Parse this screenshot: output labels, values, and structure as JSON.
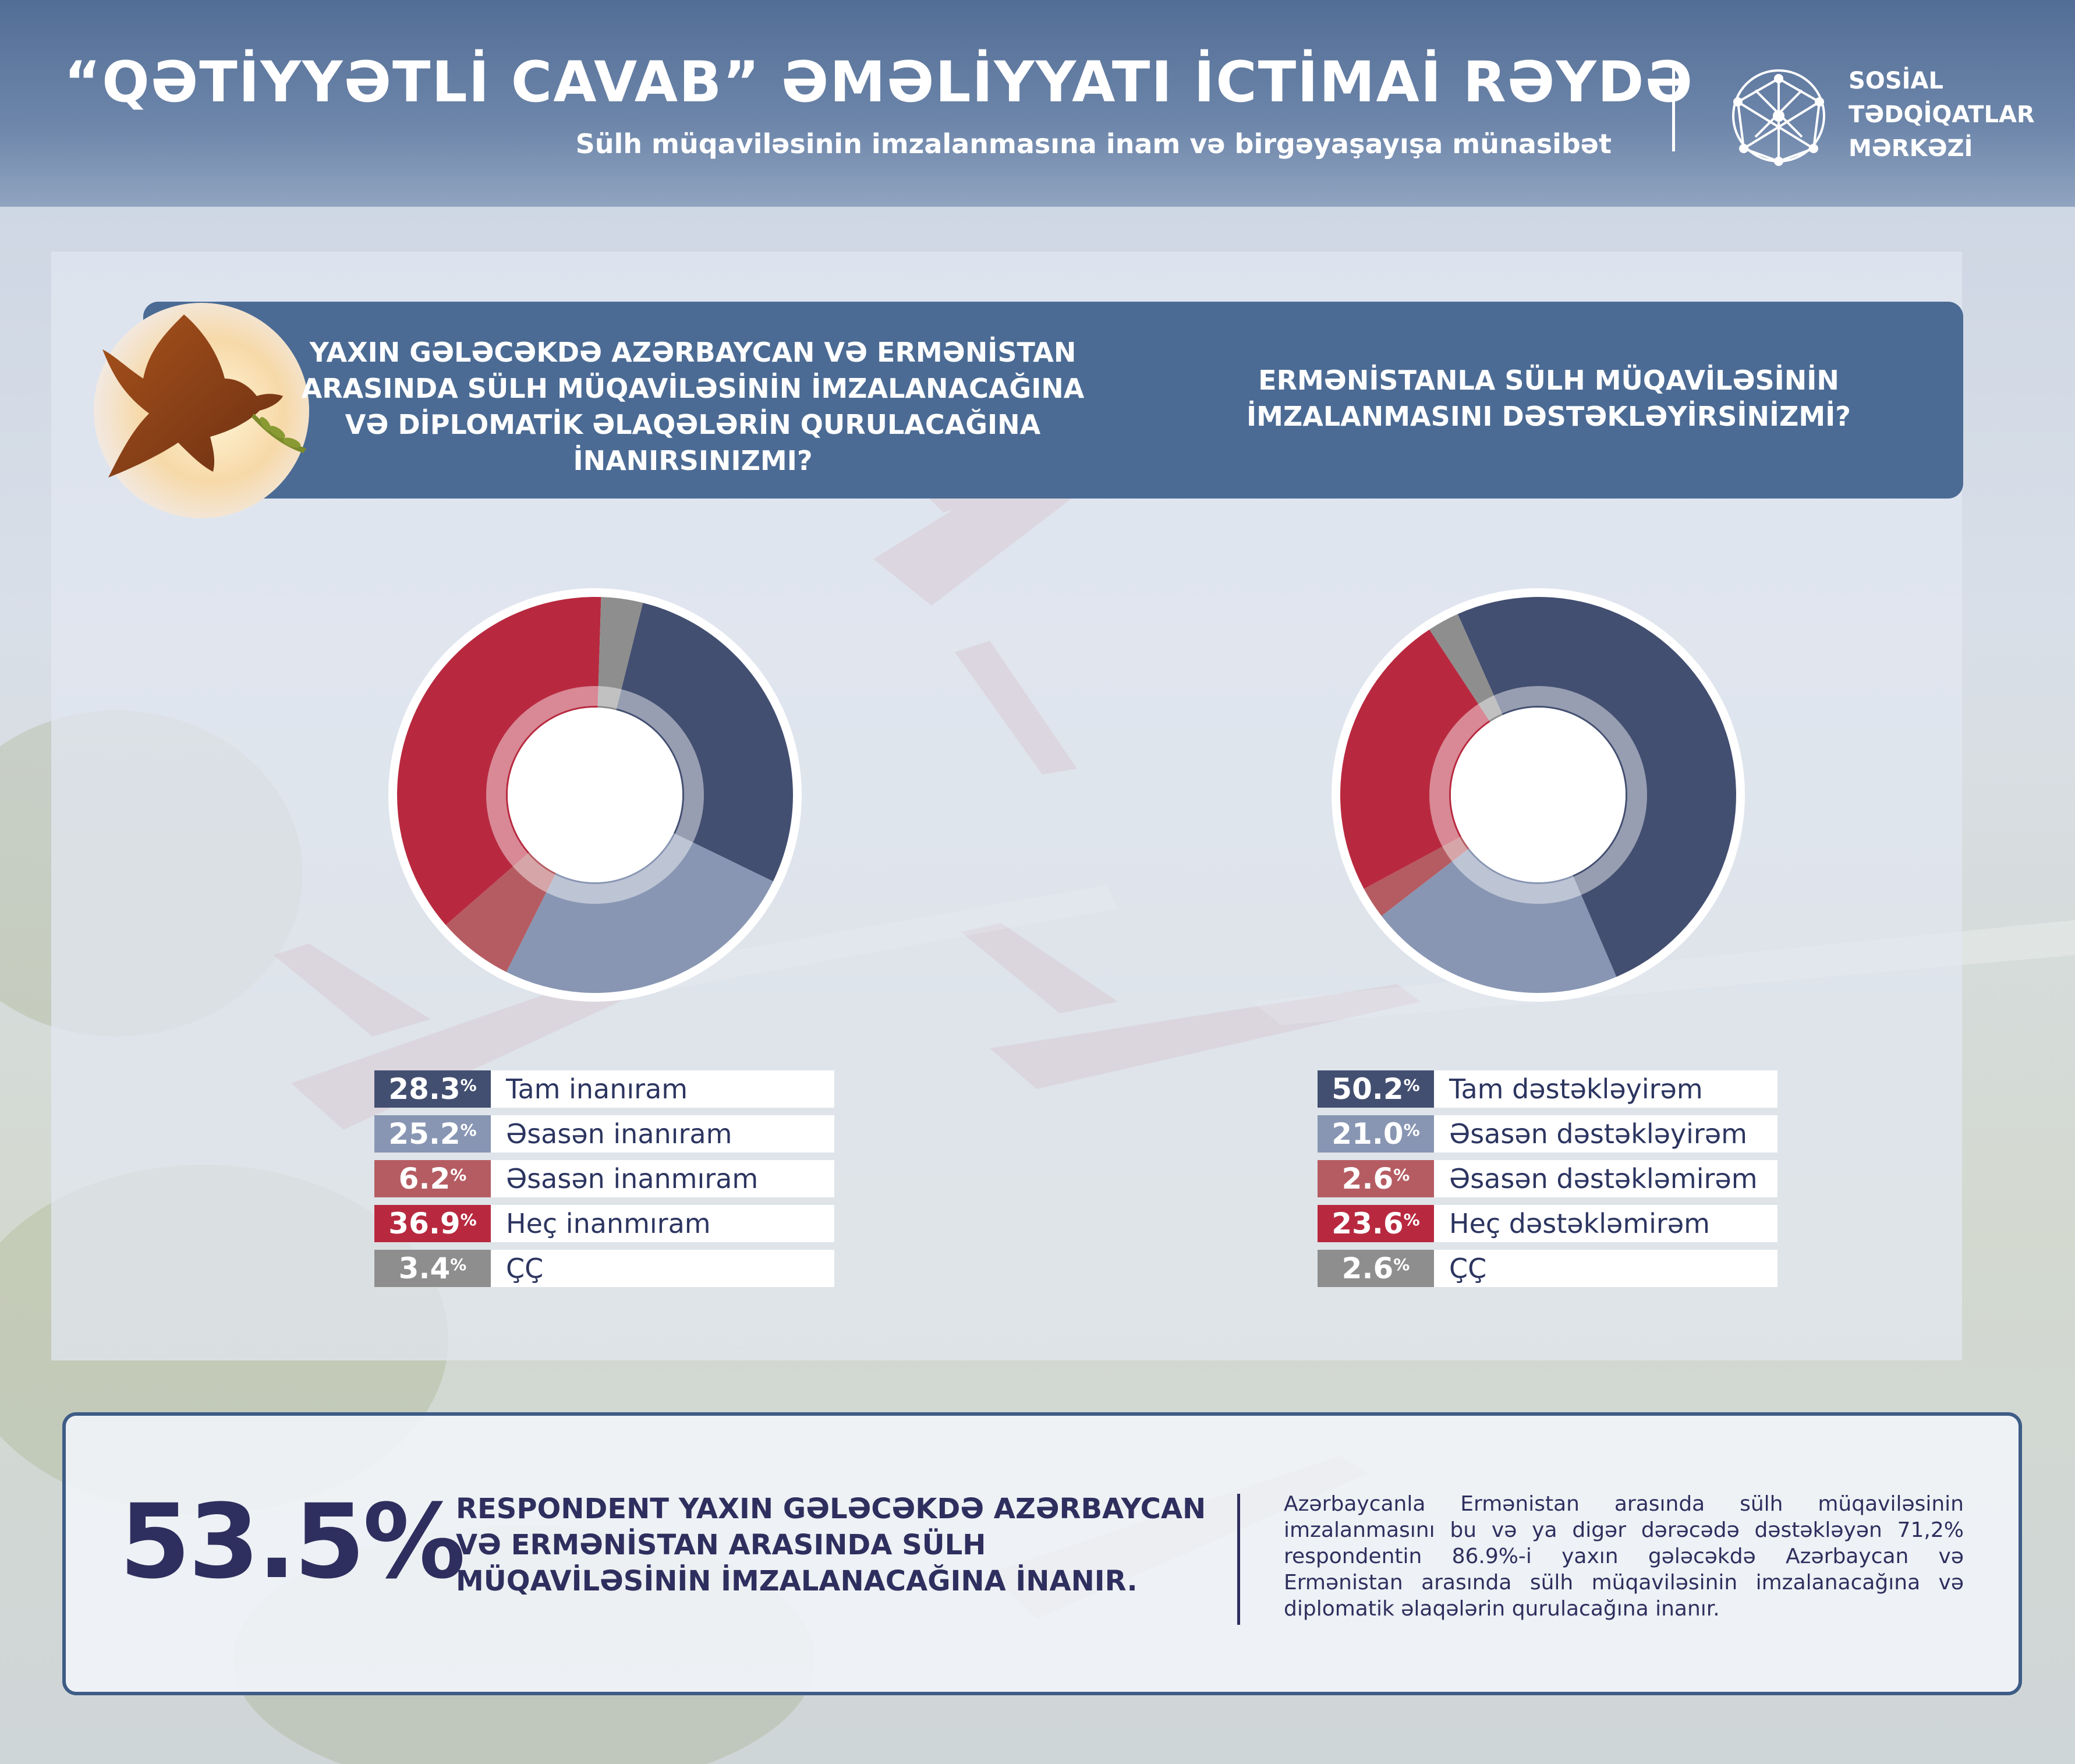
{
  "header": {
    "title": "“QƏTİYYƏTLİ CAVAB” ƏMƏLİYYATI İCTİMAİ RƏYDƏ",
    "subtitle": "Sülh müqaviləsinin imzalanmasına inam və birgəyaşayışa münasibət",
    "brand_lines": [
      "SOSİAL",
      "TƏDQİQATLAR",
      "MƏRKƏZİ"
    ],
    "logo_icon": "sphere-network-logo-icon"
  },
  "questions": {
    "q1": "YAXIN GƏLƏCƏKDƏ AZƏRBAYCAN VƏ ERMƏNİSTAN ARASINDA SÜLH MÜQAVİLƏSİNİN İMZALANACAĞINA VƏ DİPLOMATİK ƏLAQƏLƏRİN QURULACAĞINA İNANIRSINIZMI?",
    "q2": "ERMƏNİSTANLA SÜLH MÜQAVİLƏSİNİN İMZALANMASINI DƏSTƏKLƏYİRSİNİZMİ?",
    "illustration_icon": "dove-with-olive-branch-icon"
  },
  "chart_data": [
    {
      "type": "pie",
      "variant": "donut",
      "unit": "%",
      "start_angle_deg": 14,
      "categories": [
        "Tam inanıram",
        "Əsasən inanıram",
        "Əsasən inanmıram",
        "Heç inanmıram",
        "ÇÇ"
      ],
      "values": [
        28.3,
        25.2,
        6.2,
        36.9,
        3.4
      ],
      "labels": [
        "28.3",
        "25.2",
        "6.2",
        "36.9",
        "3.4"
      ],
      "colors": [
        "#434f71",
        "#8896b3",
        "#b55c62",
        "#b8293f",
        "#8e8e8e"
      ],
      "legend_position": "bottom"
    },
    {
      "type": "pie",
      "variant": "donut",
      "unit": "%",
      "start_angle_deg": -24,
      "categories": [
        "Tam dəstəkləyirəm",
        "Əsasən dəstəkləyirəm",
        "Əsasən dəstəkləmirəm",
        "Heç dəstəkləmirəm",
        "ÇÇ"
      ],
      "values": [
        50.2,
        21.0,
        2.6,
        23.6,
        2.6
      ],
      "labels": [
        "50.2",
        "21.0",
        "2.6",
        "23.6",
        "2.6"
      ],
      "colors": [
        "#434f71",
        "#8896b3",
        "#b55c62",
        "#b8293f",
        "#8e8e8e"
      ],
      "legend_position": "bottom"
    }
  ],
  "summary": {
    "big_value": "53.5%",
    "headline": "RESPONDENT YAXIN GƏLƏCƏKDƏ AZƏRBAYCAN VƏ ERMƏNİSTAN ARASINDA SÜLH MÜQAVİLƏSİNİN İMZALANACAĞINA İNANIR.",
    "text": "Azərbaycanla Ermənistan arasında sülh müqaviləsinin imzalanmasını bu və ya digər dərəcədə dəstəkləyən 71,2% respondentin 86.9%-i yaxın gələcəkdə Azərbaycan və Ermənistan arasında sülh müqaviləsinin imzalanacağına və diplomatik əlaqələrin qurulacağına inanır."
  },
  "colors": {
    "header_bg": "#4f6a93",
    "question_bar": "#4b6b94",
    "text_dark": "#2e2f5e"
  }
}
